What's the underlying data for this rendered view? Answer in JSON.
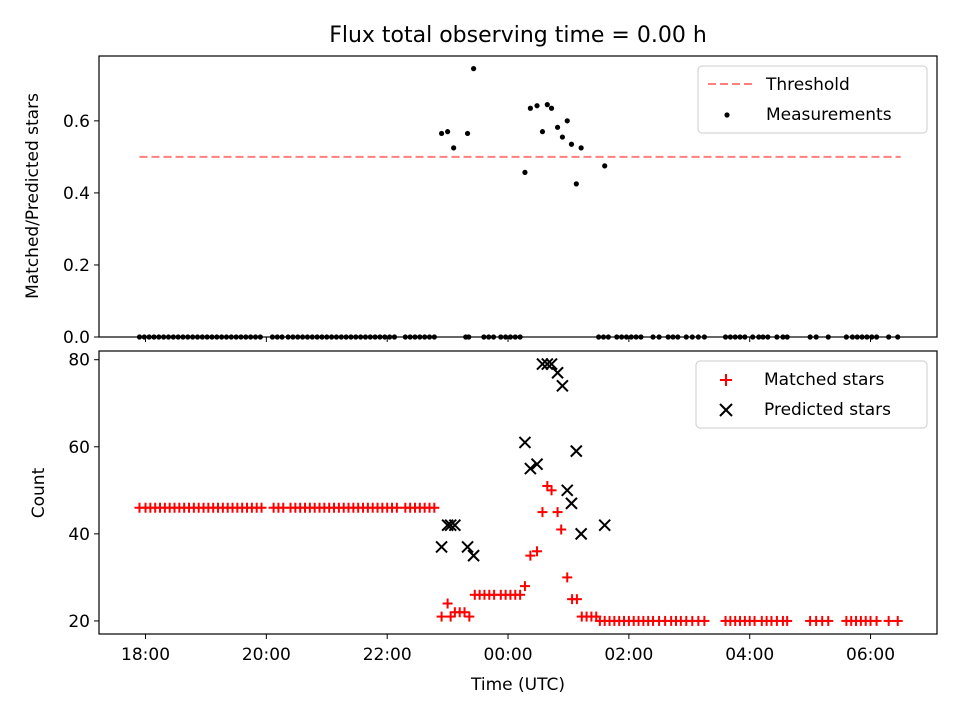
{
  "figure": {
    "title": "Flux total observing time = 0.00 h"
  },
  "chart_data": [
    {
      "type": "scatter",
      "xlabel": "",
      "ylabel": "Matched/Predicted stars",
      "ylim": [
        0.0,
        0.78
      ],
      "yticks": [
        0.0,
        0.2,
        0.4,
        0.6
      ],
      "ytick_labels": [
        "0.0",
        "0.2",
        "0.4",
        "0.6"
      ],
      "xlim_hours": [
        17.23,
        31.1
      ],
      "xticks_hours": [
        18,
        20,
        22,
        24,
        26,
        28,
        30
      ],
      "xtick_labels": [],
      "legend_position": "top-right",
      "threshold": {
        "name": "Threshold",
        "value": 0.5,
        "x_hours": [
          17.9,
          30.5
        ],
        "color": "#ff7f7f"
      },
      "series": [
        {
          "name": "Measurements",
          "marker": "dot",
          "color": "#000000",
          "points": [
            [
              22.9,
              0.565
            ],
            [
              23.0,
              0.57
            ],
            [
              23.1,
              0.525
            ],
            [
              23.33,
              0.565
            ],
            [
              23.43,
              0.745
            ],
            [
              24.28,
              0.457
            ],
            [
              24.37,
              0.635
            ],
            [
              24.48,
              0.642
            ],
            [
              24.57,
              0.57
            ],
            [
              24.65,
              0.645
            ],
            [
              24.72,
              0.635
            ],
            [
              24.82,
              0.582
            ],
            [
              24.9,
              0.555
            ],
            [
              24.98,
              0.6
            ],
            [
              25.05,
              0.535
            ],
            [
              25.13,
              0.425
            ],
            [
              25.21,
              0.525
            ],
            [
              25.6,
              0.475
            ]
          ],
          "zeros_x_hours": [
            17.9,
            17.98,
            18.06,
            18.14,
            18.22,
            18.3,
            18.38,
            18.46,
            18.54,
            18.62,
            18.7,
            18.78,
            18.86,
            18.94,
            19.02,
            19.1,
            19.18,
            19.26,
            19.34,
            19.42,
            19.5,
            19.58,
            19.66,
            19.74,
            19.82,
            19.9,
            20.1,
            20.18,
            20.26,
            20.36,
            20.44,
            20.52,
            20.6,
            20.68,
            20.76,
            20.84,
            20.92,
            21.0,
            21.08,
            21.16,
            21.24,
            21.32,
            21.4,
            21.48,
            21.56,
            21.64,
            21.72,
            21.8,
            21.88,
            21.96,
            22.04,
            22.12,
            22.3,
            22.38,
            22.46,
            22.54,
            22.62,
            22.7,
            22.78,
            23.3,
            23.35,
            23.6,
            23.68,
            23.76,
            23.88,
            23.96,
            24.04,
            24.12,
            24.2,
            25.5,
            25.58,
            25.66,
            25.8,
            25.88,
            25.96,
            26.04,
            26.12,
            26.2,
            26.4,
            26.5,
            26.65,
            26.73,
            26.81,
            26.95,
            27.05,
            27.15,
            27.25,
            27.6,
            27.68,
            27.76,
            27.84,
            27.92,
            28.05,
            28.15,
            28.22,
            28.3,
            28.45,
            28.55,
            28.62,
            29.0,
            29.1,
            29.3,
            29.6,
            29.7,
            29.78,
            29.86,
            29.94,
            30.02,
            30.1,
            30.3,
            30.45
          ]
        }
      ]
    },
    {
      "type": "scatter",
      "xlabel": "Time (UTC)",
      "ylabel": "Count",
      "ylim": [
        17,
        82
      ],
      "yticks": [
        20,
        40,
        60,
        80
      ],
      "ytick_labels": [
        "20",
        "40",
        "60",
        "80"
      ],
      "xlim_hours": [
        17.23,
        31.1
      ],
      "xticks_hours": [
        18,
        20,
        22,
        24,
        26,
        28,
        30
      ],
      "xtick_labels": [
        "18:00",
        "20:00",
        "22:00",
        "00:00",
        "02:00",
        "04:00",
        "06:00"
      ],
      "legend_position": "top-right",
      "series": [
        {
          "name": "Matched stars",
          "marker": "plus",
          "color": "#ff0000",
          "constant_runs": [
            {
              "value": 46,
              "x_hours": [
                17.9,
                18.0,
                18.08,
                18.16,
                18.24,
                18.32,
                18.4,
                18.48,
                18.56,
                18.64,
                18.72,
                18.8,
                18.88,
                18.96,
                19.04,
                19.12,
                19.2,
                19.28,
                19.36,
                19.44,
                19.52,
                19.6,
                19.68,
                19.76,
                19.84,
                19.92,
                20.12,
                20.2,
                20.28,
                20.4,
                20.48,
                20.56,
                20.64,
                20.72,
                20.8,
                20.88,
                20.96,
                21.04,
                21.12,
                21.2,
                21.28,
                21.36,
                21.44,
                21.52,
                21.6,
                21.68,
                21.76,
                21.84,
                21.92,
                22.0,
                22.08,
                22.16,
                22.3,
                22.38,
                22.46,
                22.54,
                22.62,
                22.7,
                22.78
              ]
            },
            {
              "value": 26,
              "x_hours": [
                23.45,
                23.53,
                23.61,
                23.69,
                23.77,
                23.88,
                23.96,
                24.04,
                24.12,
                24.2
              ]
            },
            {
              "value": 20,
              "x_hours": [
                25.52,
                25.6,
                25.68,
                25.76,
                25.84,
                25.92,
                26.0,
                26.08,
                26.16,
                26.24,
                26.32,
                26.4,
                26.5,
                26.6,
                26.7,
                26.78,
                26.86,
                26.95,
                27.05,
                27.15,
                27.25,
                27.6,
                27.68,
                27.76,
                27.84,
                27.92,
                28.0,
                28.08,
                28.2,
                28.28,
                28.36,
                28.45,
                28.55,
                28.62,
                29.0,
                29.1,
                29.2,
                29.3,
                29.6,
                29.68,
                29.76,
                29.84,
                29.92,
                30.0,
                30.1,
                30.3,
                30.45
              ]
            }
          ],
          "points": [
            [
              22.9,
              21
            ],
            [
              23.0,
              24
            ],
            [
              23.05,
              21
            ],
            [
              23.12,
              22
            ],
            [
              23.2,
              22
            ],
            [
              23.28,
              22
            ],
            [
              23.36,
              21
            ],
            [
              24.28,
              28
            ],
            [
              24.37,
              35
            ],
            [
              24.48,
              36
            ],
            [
              24.57,
              45
            ],
            [
              24.65,
              51
            ],
            [
              24.72,
              50
            ],
            [
              24.82,
              45
            ],
            [
              24.88,
              41
            ],
            [
              24.98,
              30
            ],
            [
              25.06,
              25
            ],
            [
              25.14,
              25
            ],
            [
              25.22,
              21
            ],
            [
              25.3,
              21
            ],
            [
              25.38,
              21
            ],
            [
              25.46,
              21
            ]
          ]
        },
        {
          "name": "Predicted stars",
          "marker": "x",
          "color": "#000000",
          "points": [
            [
              22.9,
              37
            ],
            [
              23.0,
              42
            ],
            [
              23.05,
              42
            ],
            [
              23.12,
              42
            ],
            [
              23.33,
              37
            ],
            [
              23.43,
              35
            ],
            [
              24.28,
              61
            ],
            [
              24.37,
              55
            ],
            [
              24.48,
              56
            ],
            [
              24.57,
              79
            ],
            [
              24.65,
              79
            ],
            [
              24.72,
              79
            ],
            [
              24.82,
              77
            ],
            [
              24.9,
              74
            ],
            [
              24.98,
              50
            ],
            [
              25.05,
              47
            ],
            [
              25.13,
              59
            ],
            [
              25.21,
              40
            ],
            [
              25.6,
              42
            ]
          ]
        }
      ]
    }
  ]
}
